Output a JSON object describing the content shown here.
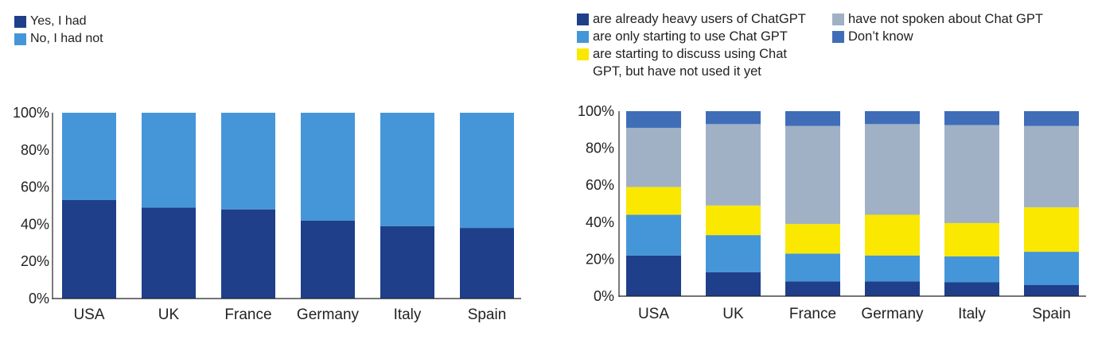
{
  "chart_data": [
    {
      "type": "bar",
      "stacked": true,
      "categories": [
        "USA",
        "UK",
        "France",
        "Germany",
        "Italy",
        "Spain"
      ],
      "series": [
        {
          "name": "Yes, I had",
          "color": "#1f3f8a",
          "values": [
            53,
            49,
            48,
            42,
            39,
            38
          ]
        },
        {
          "name": "No, I had not",
          "color": "#4596d8",
          "values": [
            47,
            51,
            52,
            58,
            61,
            62
          ]
        }
      ],
      "ylim": [
        0,
        100
      ],
      "yticks": [
        "0%",
        "20%",
        "40%",
        "60%",
        "80%",
        "100%"
      ],
      "legend": "top-left",
      "grid": false
    },
    {
      "type": "bar",
      "stacked": true,
      "categories": [
        "USA",
        "UK",
        "France",
        "Germany",
        "Italy",
        "Spain"
      ],
      "series": [
        {
          "name": "are already heavy users of ChatGPT",
          "color": "#1f3f8a",
          "values": [
            22,
            13,
            8,
            8,
            7.5,
            6
          ]
        },
        {
          "name": "are only starting to use Chat GPT",
          "color": "#4596d8",
          "values": [
            22,
            20,
            15,
            14,
            14,
            18
          ]
        },
        {
          "name": "are starting to discuss using Chat GPT, but have not used it yet",
          "color": "#fae800",
          "values": [
            15,
            16,
            16,
            22,
            18,
            24
          ]
        },
        {
          "name": "have not spoken about Chat GPT",
          "color": "#a0b1c6",
          "values": [
            32,
            44,
            53,
            49,
            53,
            44
          ]
        },
        {
          "name": "Don’t know",
          "color": "#3f6db8",
          "values": [
            9,
            7,
            8,
            7,
            7.5,
            8
          ]
        }
      ],
      "ylim": [
        0,
        100
      ],
      "yticks": [
        "0%",
        "20%",
        "40%",
        "60%",
        "80%",
        "100%"
      ],
      "legend": "top",
      "grid": false
    }
  ]
}
